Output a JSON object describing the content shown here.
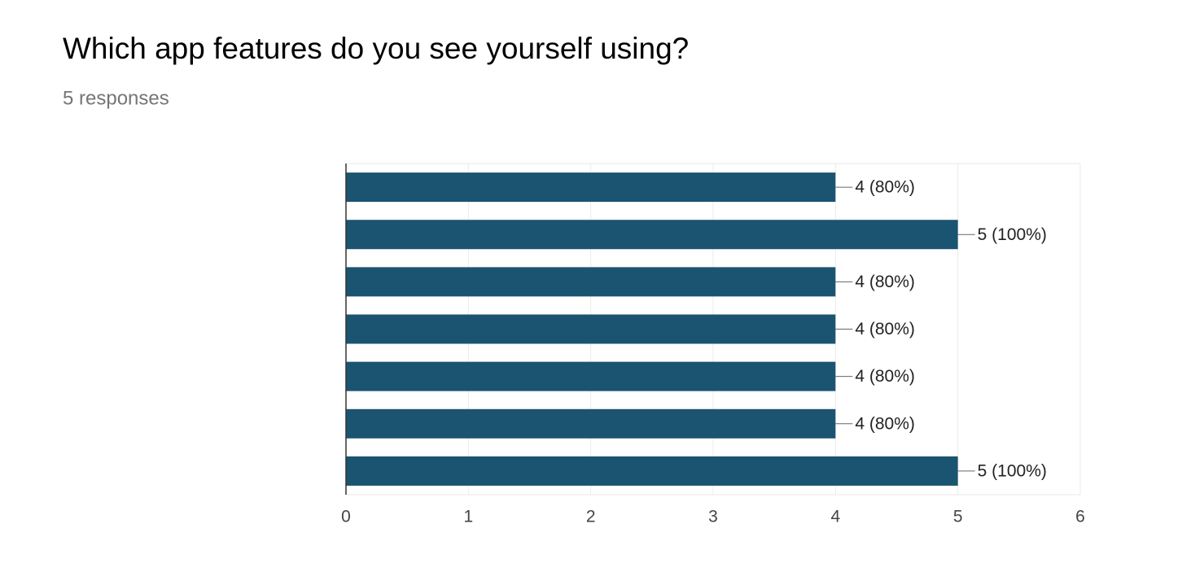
{
  "chart_data": {
    "type": "hbar",
    "title": "Which app features do you see yourself using?",
    "subtitle": "5 responses",
    "categories": [
      null,
      null,
      null,
      null,
      null,
      null,
      null
    ],
    "values": [
      4,
      5,
      4,
      4,
      4,
      4,
      5
    ],
    "value_labels": [
      "4 (80%)",
      "5 (100%)",
      "4 (80%)",
      "4 (80%)",
      "4 (80%)",
      "4 (80%)",
      "5 (100%)"
    ],
    "color": "#1b5470",
    "xlim": [
      0,
      6
    ],
    "xticks": [
      0,
      1,
      2,
      3,
      4,
      5,
      6
    ],
    "grid": true
  }
}
